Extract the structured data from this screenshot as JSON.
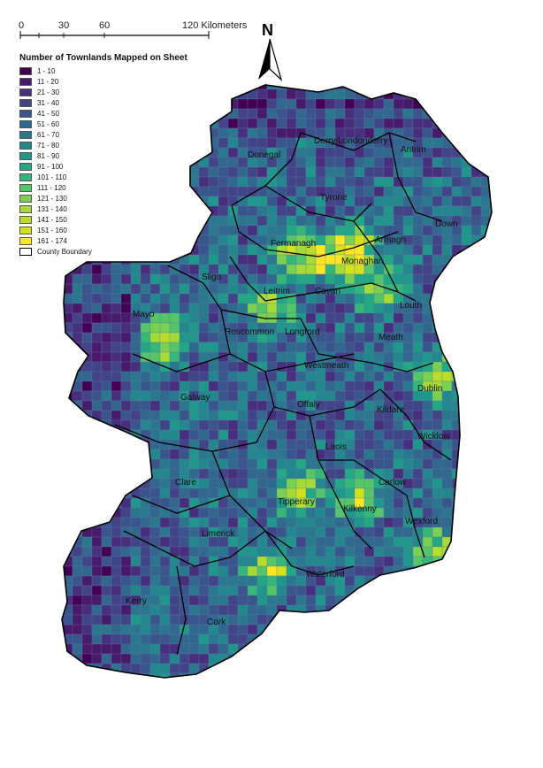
{
  "scale_bar": {
    "ticks": [
      "0",
      "30",
      "60",
      "120 Kilometers"
    ]
  },
  "north_arrow": {
    "label": "N"
  },
  "legend": {
    "title": "Number of Townlands Mapped on Sheet",
    "classes": [
      {
        "label": "1 - 10",
        "color": "#440154"
      },
      {
        "label": "11 - 20",
        "color": "#481a6c"
      },
      {
        "label": "21 - 30",
        "color": "#472f7d"
      },
      {
        "label": "31 - 40",
        "color": "#414487"
      },
      {
        "label": "41 - 50",
        "color": "#39568c"
      },
      {
        "label": "51 - 60",
        "color": "#31688e"
      },
      {
        "label": "61 - 70",
        "color": "#2a788e"
      },
      {
        "label": "71 - 80",
        "color": "#23888e"
      },
      {
        "label": "81 - 90",
        "color": "#1f988b"
      },
      {
        "label": "91 - 100",
        "color": "#22a884"
      },
      {
        "label": "101 - 110",
        "color": "#35b779"
      },
      {
        "label": "111 - 120",
        "color": "#54c568"
      },
      {
        "label": "121 - 130",
        "color": "#7ad151"
      },
      {
        "label": "131 - 140",
        "color": "#a5db36"
      },
      {
        "label": "141 - 150",
        "color": "#b8de29"
      },
      {
        "label": "151 - 160",
        "color": "#d2e21b"
      },
      {
        "label": "161 - 174",
        "color": "#fde725"
      }
    ],
    "boundary_label": "County Boundary"
  },
  "counties": [
    "Donegal",
    "Derry/Londonderry",
    "Antrim",
    "Tyrone",
    "Down",
    "Fermanagh",
    "Armagh",
    "Monaghan",
    "Sligo",
    "Leitrim",
    "Cavan",
    "Louth",
    "Mayo",
    "Roscommon",
    "Longford",
    "Meath",
    "Westmeath",
    "Dublin",
    "Galway",
    "Offaly",
    "Kildare",
    "Laois",
    "Wicklow",
    "Clare",
    "Tipperary",
    "Carlow",
    "Kilkenny",
    "Limerick",
    "Wexford",
    "Waterford",
    "Kerry",
    "Cork"
  ]
}
